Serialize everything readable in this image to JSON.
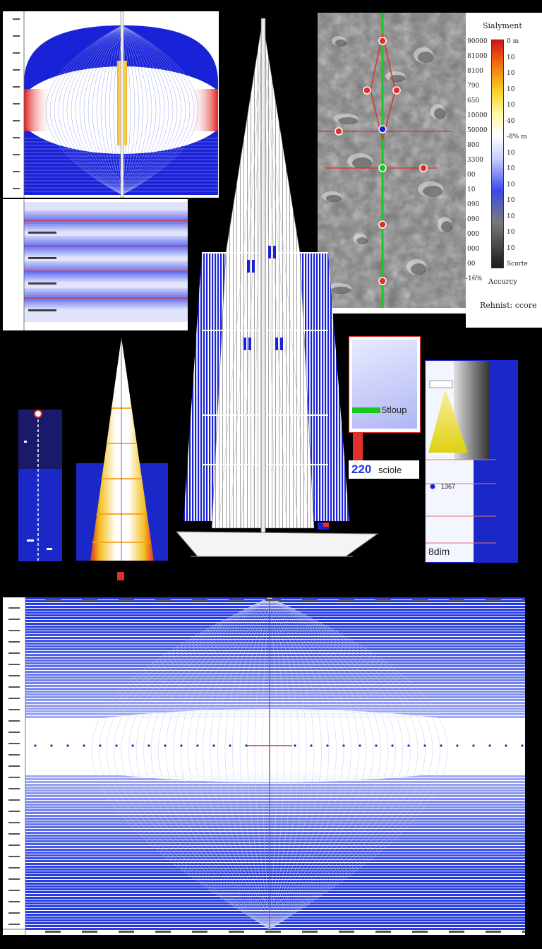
{
  "legend": {
    "title": "Sialyment",
    "left_labels": [
      "90000",
      "81000",
      "8100",
      "790",
      "650",
      "10000",
      "50000",
      "800",
      "3300",
      "00",
      "10",
      "090",
      "090",
      "000",
      "000",
      "00"
    ],
    "right_labels": [
      {
        "text": "0 m"
      },
      {
        "text": "10"
      },
      {
        "text": "10"
      },
      {
        "text": "10"
      },
      {
        "text": "10"
      },
      {
        "text": "40"
      },
      {
        "text": "-8% m"
      },
      {
        "text": "10"
      },
      {
        "text": "10"
      },
      {
        "text": "10"
      },
      {
        "text": "10"
      },
      {
        "text": "10"
      },
      {
        "text": "10"
      },
      {
        "text": "10"
      },
      {
        "text": "Scorte"
      }
    ],
    "accuracy_label": "Accurcy",
    "accuracy_prefix": "-16%",
    "footer": "Rehnist: ccore"
  },
  "overlays": {
    "sloup_label": "5tloup",
    "scale_number": "220",
    "scale_word": "sciole",
    "dim_label": "8dim",
    "side_mark": "1367"
  },
  "colors": {
    "blue": "#2233dd",
    "deep_blue": "#1a22c8",
    "red": "#e0302a",
    "yellow": "#f2e020",
    "green": "#18c820",
    "white": "#ffffff"
  }
}
